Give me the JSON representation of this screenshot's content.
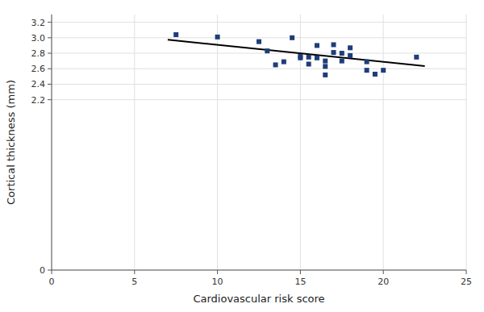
{
  "chart_data": {
    "type": "scatter",
    "x_label": "Cardiovascular risk score",
    "y_label": "Cortical thickness (mm)",
    "series": [
      {
        "type": "scatter",
        "marker": "square",
        "color": "#1f3d7a",
        "x": [
          7.5,
          10.0,
          12.5,
          13.0,
          13.5,
          14.0,
          14.5,
          15.0,
          15.0,
          15.5,
          15.5,
          16.0,
          16.0,
          16.5,
          16.5,
          16.5,
          17.0,
          17.0,
          17.5,
          17.5,
          18.0,
          18.0,
          19.0,
          19.0,
          19.5,
          20.0,
          22.0
        ],
        "values": [
          3.04,
          3.01,
          2.95,
          2.83,
          2.65,
          2.69,
          3.0,
          2.76,
          2.74,
          2.75,
          2.66,
          2.9,
          2.74,
          2.7,
          2.63,
          2.52,
          2.91,
          2.81,
          2.8,
          2.7,
          2.87,
          2.77,
          2.69,
          2.58,
          2.53,
          2.58,
          2.75
        ]
      },
      {
        "type": "line",
        "line_style": "solid",
        "color": "#000000",
        "x": [
          7.0,
          22.5
        ],
        "values": [
          2.975,
          2.635
        ]
      }
    ],
    "xlim": [
      0,
      25
    ],
    "ylim": [
      0,
      3.3
    ],
    "xticks": [
      0,
      5,
      10,
      15,
      20,
      25
    ],
    "yticks": [
      0,
      2.2,
      2.4,
      2.6,
      2.8,
      {
        "value": 3.0,
        "label": "3.0"
      },
      3.2
    ],
    "grid": true
  }
}
